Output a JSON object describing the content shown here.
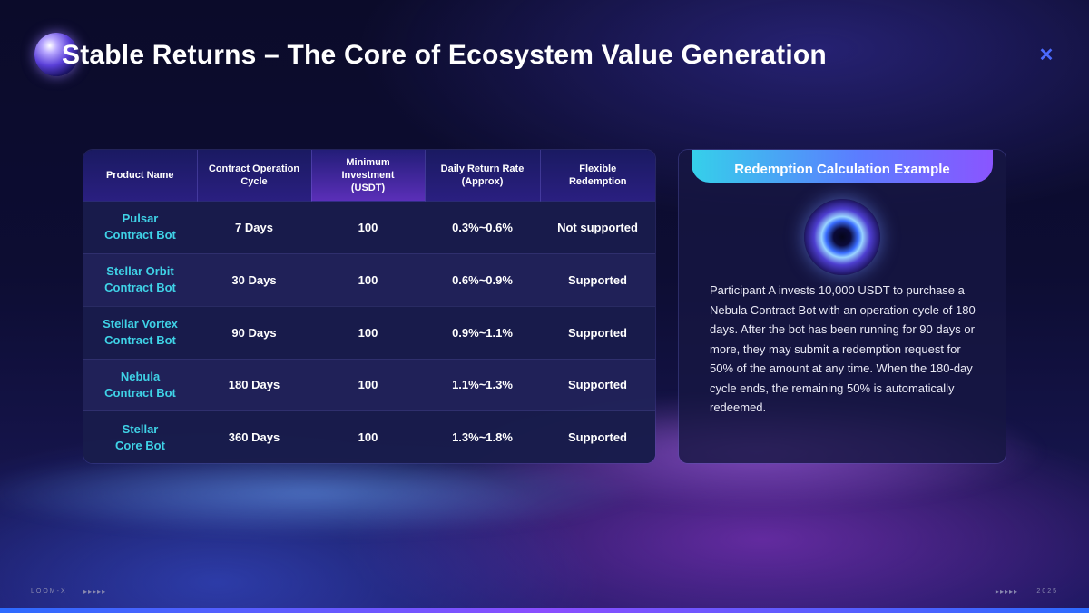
{
  "title": "Stable Returns – The Core of Ecosystem Value Generation",
  "logo_icon": "double-x-logo-icon",
  "table": {
    "headers": [
      [
        "Product Name"
      ],
      [
        "Contract Operation",
        "Cycle"
      ],
      [
        "Minimum",
        "Investment",
        "(USDT)"
      ],
      [
        "Daily Return Rate",
        "(Approx)"
      ],
      [
        "Flexible",
        "Redemption"
      ]
    ],
    "rows": [
      {
        "name": [
          "Pulsar",
          "Contract Bot"
        ],
        "cycle": "7 Days",
        "min": "100",
        "rate": "0.3%~0.6%",
        "redemption": "Not supported"
      },
      {
        "name": [
          "Stellar Orbit",
          "Contract Bot"
        ],
        "cycle": "30 Days",
        "min": "100",
        "rate": "0.6%~0.9%",
        "redemption": "Supported"
      },
      {
        "name": [
          "Stellar Vortex",
          "Contract Bot"
        ],
        "cycle": "90 Days",
        "min": "100",
        "rate": "0.9%~1.1%",
        "redemption": "Supported"
      },
      {
        "name": [
          "Nebula",
          "Contract Bot"
        ],
        "cycle": "180 Days",
        "min": "100",
        "rate": "1.1%~1.3%",
        "redemption": "Supported"
      },
      {
        "name": [
          "Stellar",
          "Core Bot"
        ],
        "cycle": "360 Days",
        "min": "100",
        "rate": "1.3%~1.8%",
        "redemption": "Supported"
      }
    ]
  },
  "example": {
    "heading": "Redemption Calculation Example",
    "text": "Participant A invests 10,000 USDT to purchase a Nebula Contract Bot with an operation cycle of 180 days. After the bot has been running for 90 days or more, they may submit a redemption request for 50% of the amount at any time. When the 180-day cycle ends, the remaining 50% is automatically redeemed."
  },
  "footer": {
    "left": "LOOM-X",
    "left_arrows": "▸▸▸▸▸",
    "right_arrows": "▸▸▸▸▸",
    "right": "2025"
  },
  "colors": {
    "product_name": "#3fd2e6",
    "accent_gradient_start": "#35d0ea",
    "accent_gradient_end": "#8a55ff"
  }
}
